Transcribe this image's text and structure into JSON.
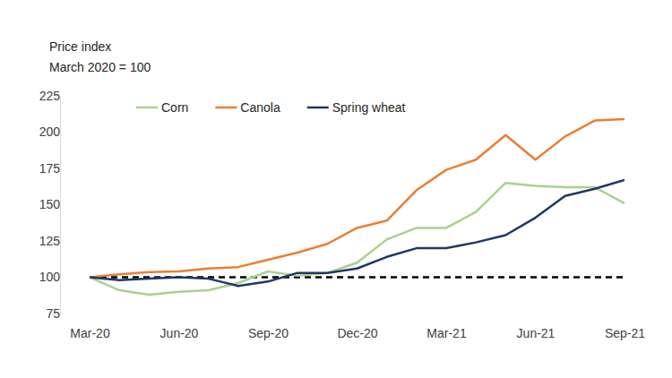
{
  "chart_data": {
    "type": "line",
    "y_label": [
      "Price index",
      "March 2020 = 100"
    ],
    "categories": [
      "Mar-20",
      null,
      null,
      "Jun-20",
      null,
      null,
      "Sep-20",
      null,
      null,
      "Dec-20",
      null,
      null,
      "Mar-21",
      null,
      null,
      "Jun-21",
      null,
      null,
      "Sep-21"
    ],
    "series": [
      {
        "name": "Corn",
        "color": "#a9d18e",
        "values": [
          100,
          91,
          88,
          90,
          91,
          96,
          104,
          101,
          103,
          110,
          126,
          134,
          134,
          145,
          165,
          163,
          162,
          162,
          151
        ]
      },
      {
        "name": "Canola",
        "color": "#ed7d31",
        "values": [
          100,
          102,
          103.5,
          104,
          106,
          107,
          112,
          117,
          123,
          134,
          139,
          160,
          174,
          181,
          198,
          181,
          197,
          208,
          209
        ]
      },
      {
        "name": "Spring wheat",
        "color": "#1f3864",
        "values": [
          100,
          98,
          99,
          100,
          99,
          94,
          97,
          103,
          103,
          106,
          114,
          120,
          120,
          124,
          129,
          141,
          156,
          161,
          167
        ]
      }
    ],
    "reference_line": {
      "value": 100,
      "color": "#000000",
      "line_style": "dashed"
    },
    "ylim": [
      75,
      225
    ],
    "yticks": [
      75,
      100,
      125,
      150,
      175,
      200,
      225
    ],
    "grid": false,
    "legend": "top"
  }
}
